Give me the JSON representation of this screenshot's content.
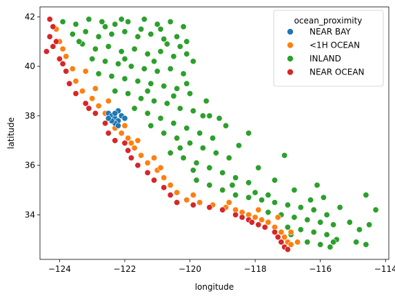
{
  "chart_data": {
    "type": "scatter",
    "title": "",
    "xlabel": "longitude",
    "ylabel": "latitude",
    "xlim": [
      -124.6,
      -113.9
    ],
    "ylim": [
      32.2,
      42.4
    ],
    "xticks": [
      -124,
      -122,
      -120,
      -118,
      -116,
      -114
    ],
    "xtick_labels": [
      "−124",
      "−122",
      "−120",
      "−118",
      "−116",
      "−114"
    ],
    "yticks": [
      34,
      36,
      38,
      40,
      42
    ],
    "ytick_labels": [
      "34",
      "36",
      "38",
      "40",
      "42"
    ],
    "grid": false,
    "legend": {
      "title": "ocean_proximity",
      "placement": "top-right",
      "entries": [
        "NEAR BAY",
        "<1H OCEAN",
        "INLAND",
        "NEAR OCEAN"
      ]
    },
    "colors": {
      "NEAR BAY": "#1f77b4",
      "<1H OCEAN": "#ff7f0e",
      "INLAND": "#2ca02c",
      "NEAR OCEAN": "#d62728"
    },
    "series": [
      {
        "name": "INLAND",
        "points": [
          [
            -123.9,
            41.8
          ],
          [
            -123.5,
            41.7
          ],
          [
            -123.1,
            41.9
          ],
          [
            -122.7,
            41.8
          ],
          [
            -122.3,
            41.7
          ],
          [
            -121.9,
            41.8
          ],
          [
            -121.4,
            41.9
          ],
          [
            -121.0,
            41.7
          ],
          [
            -120.6,
            41.8
          ],
          [
            -120.2,
            41.6
          ],
          [
            -123.6,
            41.3
          ],
          [
            -123.2,
            41.4
          ],
          [
            -122.8,
            41.2
          ],
          [
            -122.4,
            41.3
          ],
          [
            -122.0,
            41.4
          ],
          [
            -121.6,
            41.2
          ],
          [
            -121.2,
            41.3
          ],
          [
            -120.8,
            41.1
          ],
          [
            -120.4,
            41.2
          ],
          [
            -120.1,
            41.0
          ],
          [
            -123.3,
            40.9
          ],
          [
            -122.9,
            40.7
          ],
          [
            -122.5,
            40.8
          ],
          [
            -122.1,
            40.6
          ],
          [
            -121.7,
            40.7
          ],
          [
            -121.3,
            40.5
          ],
          [
            -120.9,
            40.6
          ],
          [
            -120.5,
            40.4
          ],
          [
            -120.1,
            40.5
          ],
          [
            -119.9,
            40.2
          ],
          [
            -123.0,
            40.3
          ],
          [
            -122.6,
            40.2
          ],
          [
            -122.2,
            40.1
          ],
          [
            -121.8,
            40.0
          ],
          [
            -121.4,
            39.9
          ],
          [
            -121.0,
            39.8
          ],
          [
            -120.6,
            39.9
          ],
          [
            -120.2,
            39.7
          ],
          [
            -122.8,
            39.7
          ],
          [
            -122.4,
            39.6
          ],
          [
            -122.0,
            39.5
          ],
          [
            -121.6,
            39.4
          ],
          [
            -121.2,
            39.3
          ],
          [
            -120.8,
            39.2
          ],
          [
            -120.4,
            39.1
          ],
          [
            -120.0,
            38.9
          ],
          [
            -122.3,
            39.0
          ],
          [
            -121.9,
            38.9
          ],
          [
            -121.5,
            38.7
          ],
          [
            -121.1,
            38.6
          ],
          [
            -120.7,
            38.5
          ],
          [
            -120.3,
            38.3
          ],
          [
            -119.9,
            38.2
          ],
          [
            -119.6,
            38.0
          ],
          [
            -121.7,
            38.3
          ],
          [
            -121.3,
            38.1
          ],
          [
            -120.9,
            37.9
          ],
          [
            -120.5,
            37.7
          ],
          [
            -120.1,
            37.5
          ],
          [
            -119.7,
            37.3
          ],
          [
            -119.3,
            37.1
          ],
          [
            -121.2,
            37.6
          ],
          [
            -120.8,
            37.3
          ],
          [
            -120.4,
            37.1
          ],
          [
            -120.0,
            36.9
          ],
          [
            -119.6,
            36.7
          ],
          [
            -119.2,
            36.5
          ],
          [
            -118.8,
            36.3
          ],
          [
            -120.6,
            36.5
          ],
          [
            -120.2,
            36.3
          ],
          [
            -119.8,
            36.1
          ],
          [
            -119.4,
            35.9
          ],
          [
            -119.0,
            35.7
          ],
          [
            -118.6,
            35.5
          ],
          [
            -118.2,
            35.3
          ],
          [
            -119.8,
            35.4
          ],
          [
            -119.4,
            35.2
          ],
          [
            -119.0,
            35.0
          ],
          [
            -118.6,
            34.8
          ],
          [
            -118.2,
            34.7
          ],
          [
            -117.8,
            34.6
          ],
          [
            -117.4,
            34.5
          ],
          [
            -117.0,
            34.4
          ],
          [
            -116.6,
            34.3
          ],
          [
            -116.2,
            34.2
          ],
          [
            -115.8,
            34.0
          ],
          [
            -117.6,
            34.1
          ],
          [
            -117.2,
            34.0
          ],
          [
            -116.8,
            33.9
          ],
          [
            -116.4,
            33.8
          ],
          [
            -116.0,
            33.7
          ],
          [
            -115.6,
            33.6
          ],
          [
            -117.0,
            33.5
          ],
          [
            -116.6,
            33.4
          ],
          [
            -116.2,
            33.3
          ],
          [
            -115.8,
            33.2
          ],
          [
            -115.5,
            33.0
          ],
          [
            -116.4,
            32.9
          ],
          [
            -116.0,
            32.8
          ],
          [
            -115.6,
            32.9
          ],
          [
            -114.6,
            34.8
          ],
          [
            -114.5,
            33.6
          ],
          [
            -114.6,
            32.8
          ],
          [
            -114.3,
            34.2
          ],
          [
            -114.8,
            33.4
          ],
          [
            -115.4,
            34.3
          ],
          [
            -116.1,
            35.2
          ],
          [
            -117.1,
            36.4
          ],
          [
            -117.9,
            35.9
          ],
          [
            -118.2,
            37.3
          ],
          [
            -118.9,
            37.6
          ],
          [
            -119.5,
            38.6
          ],
          [
            -120.1,
            39.3
          ],
          [
            -119.4,
            38.0
          ],
          [
            -118.5,
            36.8
          ],
          [
            -117.4,
            35.4
          ],
          [
            -116.8,
            35.0
          ],
          [
            -115.9,
            34.7
          ],
          [
            -121.1,
            40.2
          ],
          [
            -120.7,
            40.9
          ],
          [
            -121.5,
            41.5
          ],
          [
            -122.6,
            41.6
          ],
          [
            -123.4,
            41.0
          ],
          [
            -122.0,
            40.3
          ],
          [
            -121.3,
            39.0
          ],
          [
            -120.5,
            38.8
          ],
          [
            -119.1,
            37.9
          ],
          [
            -118.0,
            34.9
          ],
          [
            -116.3,
            34.6
          ],
          [
            -115.1,
            33.7
          ],
          [
            -120.3,
            36.7
          ],
          [
            -119.9,
            35.8
          ],
          [
            -118.7,
            35.2
          ],
          [
            -117.6,
            34.8
          ],
          [
            -116.9,
            33.2
          ],
          [
            -115.7,
            32.7
          ],
          [
            -114.9,
            32.9
          ],
          [
            -122.1,
            41.9
          ],
          [
            -120.9,
            41.5
          ],
          [
            -120.3,
            40.8
          ]
        ]
      },
      {
        "name": "<1H OCEAN",
        "points": [
          [
            -124.1,
            41.5
          ],
          [
            -124.0,
            41.0
          ],
          [
            -123.8,
            40.4
          ],
          [
            -123.6,
            39.9
          ],
          [
            -123.5,
            39.4
          ],
          [
            -123.3,
            39.0
          ],
          [
            -123.0,
            38.7
          ],
          [
            -122.8,
            38.4
          ],
          [
            -122.6,
            38.1
          ],
          [
            -122.4,
            37.8
          ],
          [
            -122.3,
            37.5
          ],
          [
            -122.1,
            37.3
          ],
          [
            -121.9,
            37.1
          ],
          [
            -121.8,
            36.9
          ],
          [
            -121.7,
            36.7
          ],
          [
            -121.5,
            36.4
          ],
          [
            -121.3,
            36.1
          ],
          [
            -121.0,
            35.8
          ],
          [
            -120.8,
            35.5
          ],
          [
            -120.6,
            35.2
          ],
          [
            -120.4,
            34.9
          ],
          [
            -120.1,
            34.6
          ],
          [
            -119.7,
            34.5
          ],
          [
            -119.3,
            34.4
          ],
          [
            -118.9,
            34.3
          ],
          [
            -118.6,
            34.2
          ],
          [
            -118.4,
            34.1
          ],
          [
            -118.2,
            34.0
          ],
          [
            -118.0,
            33.9
          ],
          [
            -117.8,
            33.8
          ],
          [
            -117.6,
            33.7
          ],
          [
            -117.4,
            33.5
          ],
          [
            -117.2,
            33.3
          ],
          [
            -117.1,
            33.1
          ],
          [
            -117.0,
            32.9
          ],
          [
            -116.9,
            32.8
          ],
          [
            -116.7,
            32.9
          ],
          [
            -123.2,
            39.8
          ],
          [
            -122.9,
            39.1
          ],
          [
            -122.5,
            38.6
          ],
          [
            -121.6,
            37.0
          ],
          [
            -121.1,
            36.3
          ],
          [
            -119.9,
            34.8
          ],
          [
            -118.8,
            34.5
          ],
          [
            -117.9,
            34.2
          ],
          [
            -117.3,
            33.9
          ],
          [
            -116.9,
            33.3
          ],
          [
            -122.0,
            37.6
          ],
          [
            -120.9,
            35.9
          ],
          [
            -123.9,
            40.7
          ]
        ]
      },
      {
        "name": "NEAR OCEAN",
        "points": [
          [
            -124.3,
            41.9
          ],
          [
            -124.2,
            41.6
          ],
          [
            -124.3,
            41.2
          ],
          [
            -124.2,
            40.8
          ],
          [
            -124.4,
            40.6
          ],
          [
            -124.0,
            40.3
          ],
          [
            -123.8,
            39.8
          ],
          [
            -123.7,
            39.3
          ],
          [
            -123.5,
            38.9
          ],
          [
            -123.2,
            38.5
          ],
          [
            -122.9,
            38.1
          ],
          [
            -122.6,
            37.7
          ],
          [
            -122.5,
            37.3
          ],
          [
            -122.3,
            37.0
          ],
          [
            -122.0,
            36.9
          ],
          [
            -121.9,
            36.6
          ],
          [
            -121.8,
            36.3
          ],
          [
            -121.6,
            36.0
          ],
          [
            -121.3,
            35.7
          ],
          [
            -121.1,
            35.4
          ],
          [
            -120.8,
            35.1
          ],
          [
            -120.6,
            34.8
          ],
          [
            -120.4,
            34.5
          ],
          [
            -119.9,
            34.4
          ],
          [
            -119.4,
            34.3
          ],
          [
            -119.0,
            34.2
          ],
          [
            -118.6,
            34.0
          ],
          [
            -118.4,
            33.9
          ],
          [
            -118.2,
            33.8
          ],
          [
            -118.1,
            33.7
          ],
          [
            -117.9,
            33.6
          ],
          [
            -117.7,
            33.5
          ],
          [
            -117.4,
            33.3
          ],
          [
            -117.3,
            33.1
          ],
          [
            -117.2,
            32.9
          ],
          [
            -117.1,
            32.7
          ],
          [
            -117.0,
            32.6
          ],
          [
            -124.1,
            41.0
          ],
          [
            -123.9,
            40.1
          ],
          [
            -123.1,
            38.3
          ]
        ]
      },
      {
        "name": "NEAR BAY",
        "points": [
          [
            -122.5,
            38.1
          ],
          [
            -122.4,
            38.0
          ],
          [
            -122.3,
            37.9
          ],
          [
            -122.2,
            37.8
          ],
          [
            -122.3,
            37.7
          ],
          [
            -122.2,
            38.2
          ],
          [
            -122.1,
            38.0
          ],
          [
            -122.0,
            37.9
          ],
          [
            -122.4,
            37.8
          ],
          [
            -122.2,
            37.6
          ],
          [
            -122.5,
            37.9
          ],
          [
            -122.3,
            38.1
          ]
        ]
      }
    ]
  }
}
